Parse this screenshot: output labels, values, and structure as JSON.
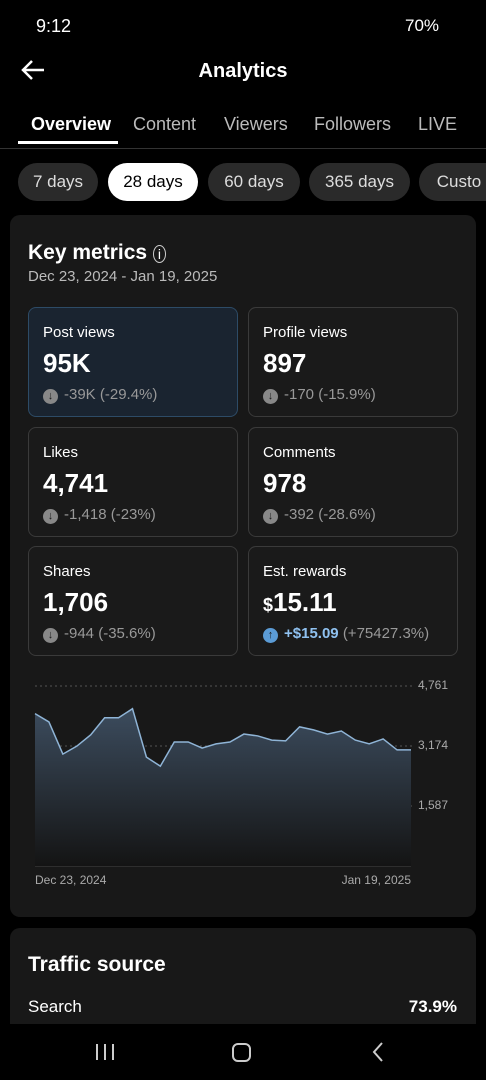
{
  "status_bar": {
    "time": "9:12",
    "battery": "70%"
  },
  "header": {
    "title": "Analytics"
  },
  "tabs": [
    "Overview",
    "Content",
    "Viewers",
    "Followers",
    "LIVE"
  ],
  "ranges": [
    "7 days",
    "28 days",
    "60 days",
    "365 days",
    "Custo"
  ],
  "key_metrics": {
    "title": "Key metrics",
    "date_range": "Dec 23, 2024 - Jan 19, 2025",
    "cards": [
      {
        "label": "Post views",
        "value": "95K",
        "change": "-39K",
        "change_pct": "(-29.4%)"
      },
      {
        "label": "Profile views",
        "value": "897",
        "change": "-170",
        "change_pct": "(-15.9%)"
      },
      {
        "label": "Likes",
        "value": "4,741",
        "change": "-1,418",
        "change_pct": "(-23%)"
      },
      {
        "label": "Comments",
        "value": "978",
        "change": "-392",
        "change_pct": "(-28.6%)"
      },
      {
        "label": "Shares",
        "value": "1,706",
        "change": "-944",
        "change_pct": "(-35.6%)"
      },
      {
        "label": "Est. rewards",
        "value_prefix": "$",
        "value": "15.11",
        "change": "+$15.09",
        "change_pct": "(+75427.3%)"
      }
    ]
  },
  "chart": {
    "type": "line",
    "color": "#8fb4d6",
    "categories": [
      "Dec 23, 2024",
      null,
      null,
      null,
      null,
      null,
      null,
      null,
      null,
      null,
      null,
      null,
      null,
      null,
      null,
      null,
      null,
      null,
      null,
      null,
      null,
      null,
      null,
      null,
      null,
      null,
      null,
      "Jan 19, 2025"
    ],
    "values": [
      4030,
      3810,
      2960,
      3170,
      3470,
      3920,
      3920,
      4160,
      2880,
      2640,
      3280,
      3280,
      3120,
      3230,
      3280,
      3490,
      3440,
      3330,
      3310,
      3680,
      3600,
      3490,
      3570,
      3330,
      3230,
      3360,
      3070,
      3070
    ],
    "ylim": [
      0,
      4761
    ],
    "yticks": [
      {
        "value": 4761,
        "label": "4,761"
      },
      {
        "value": 3174,
        "label": "3,174"
      },
      {
        "value": 1587,
        "label": "1,587"
      }
    ],
    "grid": true
  },
  "traffic": {
    "title": "Traffic source",
    "rows": [
      {
        "name": "Search",
        "value": "73.9%"
      }
    ]
  }
}
